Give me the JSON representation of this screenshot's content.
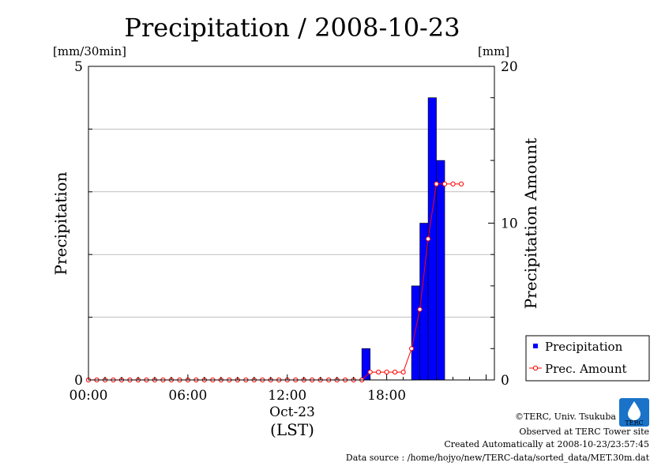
{
  "chart_data": {
    "type": "bar",
    "title": "Precipitation / 2008-10-23",
    "left_unit": "[mm/30min]",
    "right_unit": "[mm]",
    "ylabel": "Precipitation",
    "y2label": "Precipitation Amount",
    "ylim": [
      0,
      5
    ],
    "y2lim": [
      0,
      20
    ],
    "yticks": [
      "0",
      "5"
    ],
    "y2ticks": [
      "0",
      "10",
      "20"
    ],
    "xticks": [
      "00:00",
      "06:00",
      "12:00",
      "18:00"
    ],
    "xtick_hours": [
      0,
      6,
      12,
      18
    ],
    "date_label": "Oct-23",
    "tz_label": "(LST)",
    "grid": true,
    "legend_position": "bottom-right",
    "series": [
      {
        "name": "Precipitation",
        "kind": "bar",
        "color": "#0000ff",
        "x_hours": [
          16.5,
          19.5,
          20.0,
          20.5,
          21.0
        ],
        "values": [
          0.5,
          1.5,
          2.5,
          4.5,
          3.5
        ]
      },
      {
        "name": "Prec. Amount",
        "kind": "line",
        "color": "#ff0000",
        "x_hours": [
          0,
          0.5,
          1,
          1.5,
          2,
          2.5,
          3,
          3.5,
          4,
          4.5,
          5,
          5.5,
          6,
          6.5,
          7,
          7.5,
          8,
          8.5,
          9,
          9.5,
          10,
          10.5,
          11,
          11.5,
          12,
          12.5,
          13,
          13.5,
          14,
          14.5,
          15,
          15.5,
          16,
          16.5,
          17,
          17.5,
          18,
          18.5,
          19,
          19.5,
          20,
          20.5,
          21,
          21.5,
          22,
          22.5
        ],
        "values": [
          0,
          0,
          0,
          0,
          0,
          0,
          0,
          0,
          0,
          0,
          0,
          0,
          0,
          0,
          0,
          0,
          0,
          0,
          0,
          0,
          0,
          0,
          0,
          0,
          0,
          0,
          0,
          0,
          0,
          0,
          0,
          0,
          0,
          0,
          0.5,
          0.5,
          0.5,
          0.5,
          0.5,
          2,
          4.5,
          9,
          12.5,
          12.5,
          12.5,
          12.5
        ]
      }
    ]
  },
  "logo": {
    "text": "TERC"
  },
  "footer": {
    "copyright": "©TERC, Univ. Tsukuba",
    "observed": "Observed at TERC Tower site",
    "created": "Created Automatically at 2008-10-23/23:57:45",
    "source": "Data source : /home/hojyo/new/TERC-data/sorted_data/MET.30m.dat"
  }
}
